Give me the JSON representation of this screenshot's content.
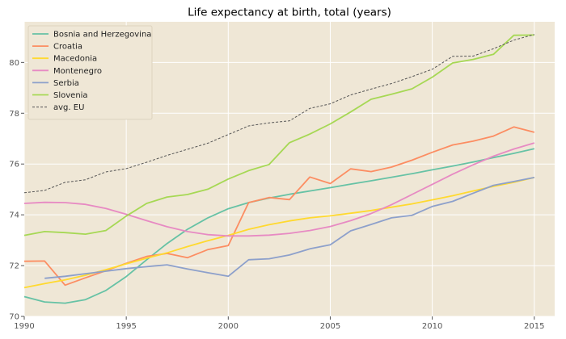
{
  "chart_data": {
    "type": "line",
    "title": "Life expectancy at birth, total (years)",
    "xlabel": "",
    "ylabel": "",
    "xlim": [
      1990,
      2016
    ],
    "ylim": [
      70,
      81.6
    ],
    "x_ticks": [
      1990,
      1995,
      2000,
      2005,
      2010,
      2015
    ],
    "y_ticks": [
      70,
      72,
      74,
      76,
      78,
      80
    ],
    "grid": true,
    "legend_position": "top-left",
    "colors": {
      "plot_background": "#efe7d6",
      "grid": "#ffffff"
    },
    "series": [
      {
        "name": "Bosnia and Herzegovina",
        "color": "#66c2a5",
        "dashed": false,
        "x": [
          1990,
          1991,
          1992,
          1993,
          1994,
          1995,
          1996,
          1997,
          1998,
          1999,
          2000,
          2001,
          2002,
          2003,
          2004,
          2005,
          2006,
          2007,
          2008,
          2009,
          2010,
          2011,
          2012,
          2013,
          2014,
          2015
        ],
        "y": [
          70.78,
          70.57,
          70.52,
          70.66,
          71.02,
          71.57,
          72.23,
          72.87,
          73.43,
          73.88,
          74.24,
          74.48,
          74.66,
          74.81,
          74.94,
          75.07,
          75.21,
          75.34,
          75.48,
          75.62,
          75.77,
          75.92,
          76.08,
          76.25,
          76.42,
          76.6
        ]
      },
      {
        "name": "Croatia",
        "color": "#fc8d62",
        "dashed": false,
        "x": [
          1990,
          1991,
          1992,
          1993,
          1994,
          1995,
          1996,
          1997,
          1998,
          1999,
          2000,
          2001,
          2002,
          2003,
          2004,
          2005,
          2006,
          2007,
          2008,
          2009,
          2010,
          2011,
          2012,
          2013,
          2014,
          2015
        ],
        "y": [
          72.17,
          72.18,
          71.23,
          71.52,
          71.8,
          72.09,
          72.36,
          72.48,
          72.31,
          72.63,
          72.79,
          74.48,
          74.68,
          74.6,
          75.49,
          75.23,
          75.81,
          75.7,
          75.88,
          76.15,
          76.46,
          76.75,
          76.9,
          77.1,
          77.46,
          77.25
        ]
      },
      {
        "name": "Macedonia",
        "color": "#ffd92f",
        "dashed": false,
        "x": [
          1990,
          1991,
          1992,
          1993,
          1994,
          1995,
          1996,
          1997,
          1998,
          1999,
          2000,
          2001,
          2002,
          2003,
          2004,
          2005,
          2006,
          2007,
          2008,
          2009,
          2010,
          2011,
          2012,
          2013,
          2014,
          2015
        ],
        "y": [
          71.13,
          71.29,
          71.44,
          71.62,
          71.84,
          72.07,
          72.29,
          72.5,
          72.75,
          72.98,
          73.19,
          73.43,
          73.61,
          73.76,
          73.88,
          73.96,
          74.06,
          74.17,
          74.3,
          74.43,
          74.59,
          74.75,
          74.94,
          75.12,
          75.28,
          75.47
        ]
      },
      {
        "name": "Montenegro",
        "color": "#e78ac3",
        "dashed": false,
        "x": [
          1990,
          1991,
          1992,
          1993,
          1994,
          1995,
          1996,
          1997,
          1998,
          1999,
          2000,
          2001,
          2002,
          2003,
          2004,
          2005,
          2006,
          2007,
          2008,
          2009,
          2010,
          2011,
          2012,
          2013,
          2014,
          2015
        ],
        "y": [
          74.45,
          74.49,
          74.48,
          74.41,
          74.25,
          74.02,
          73.77,
          73.53,
          73.34,
          73.22,
          73.17,
          73.17,
          73.2,
          73.27,
          73.38,
          73.54,
          73.77,
          74.05,
          74.4,
          74.8,
          75.2,
          75.6,
          75.97,
          76.31,
          76.59,
          76.83
        ]
      },
      {
        "name": "Serbia",
        "color": "#8da0cb",
        "dashed": false,
        "x": [
          1991,
          1992,
          1993,
          1994,
          1995,
          1996,
          1997,
          1998,
          1999,
          2000,
          2001,
          2002,
          2003,
          2004,
          2005,
          2006,
          2007,
          2008,
          2009,
          2010,
          2011,
          2012,
          2013,
          2014,
          2015
        ],
        "y": [
          71.5,
          71.58,
          71.68,
          71.78,
          71.88,
          71.96,
          72.03,
          71.87,
          71.72,
          71.58,
          72.23,
          72.27,
          72.42,
          72.66,
          72.82,
          73.37,
          73.62,
          73.88,
          73.98,
          74.33,
          74.53,
          74.85,
          75.16,
          75.31,
          75.47
        ]
      },
      {
        "name": "Slovenia",
        "color": "#a6d854",
        "dashed": false,
        "x": [
          1990,
          1991,
          1992,
          1993,
          1994,
          1995,
          1996,
          1997,
          1998,
          1999,
          2000,
          2001,
          2002,
          2003,
          2004,
          2005,
          2006,
          2007,
          2008,
          2009,
          2010,
          2011,
          2012,
          2013,
          2014,
          2015
        ],
        "y": [
          73.19,
          73.34,
          73.3,
          73.24,
          73.38,
          73.95,
          74.45,
          74.7,
          74.8,
          75.01,
          75.41,
          75.74,
          75.98,
          76.84,
          77.18,
          77.58,
          78.05,
          78.55,
          78.75,
          78.96,
          79.42,
          79.98,
          80.12,
          80.32,
          81.07,
          81.08
        ]
      },
      {
        "name": "avg. EU",
        "color": "#555555",
        "dashed": true,
        "x": [
          1990,
          1991,
          1992,
          1993,
          1994,
          1995,
          1996,
          1997,
          1998,
          1999,
          2000,
          2001,
          2002,
          2003,
          2004,
          2005,
          2006,
          2007,
          2008,
          2009,
          2010,
          2011,
          2012,
          2013,
          2014,
          2015
        ],
        "y": [
          74.87,
          74.96,
          75.28,
          75.38,
          75.69,
          75.82,
          76.07,
          76.34,
          76.58,
          76.82,
          77.16,
          77.5,
          77.62,
          77.7,
          78.19,
          78.37,
          78.72,
          78.95,
          79.17,
          79.44,
          79.73,
          80.24,
          80.25,
          80.54,
          80.88,
          81.1
        ]
      }
    ]
  }
}
